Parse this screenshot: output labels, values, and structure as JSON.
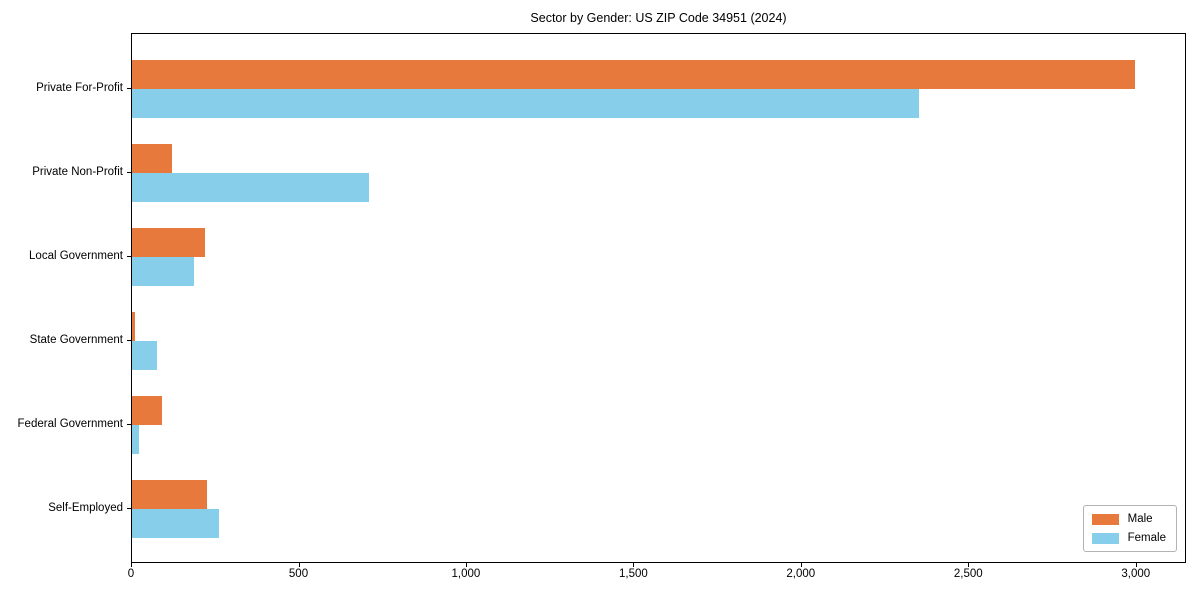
{
  "figure": {
    "background": "#ffffff"
  },
  "chart_data": {
    "type": "bar",
    "orientation": "horizontal",
    "title": "Sector by Gender: US ZIP Code 34951 (2024)",
    "xlabel": "",
    "ylabel": "",
    "grid": false,
    "categories": [
      "Private For-Profit",
      "Private Non-Profit",
      "Local Government",
      "State Government",
      "Federal Government",
      "Self-Employed"
    ],
    "series": [
      {
        "name": "Male",
        "color": "#e8793d",
        "values": [
          2995,
          120,
          218,
          9,
          90,
          224
        ]
      },
      {
        "name": "Female",
        "color": "#87ceeb",
        "values": [
          2350,
          707,
          185,
          74,
          20,
          260
        ]
      }
    ],
    "xlim": [
      0,
      3150
    ],
    "x_ticks": [
      0,
      500,
      1000,
      1500,
      2000,
      2500,
      3000
    ],
    "x_tick_labels": [
      "0",
      "500",
      "1,000",
      "1,500",
      "2,000",
      "2,500",
      "3,000"
    ],
    "legend": {
      "position": "lower right",
      "entries": [
        "Male",
        "Female"
      ]
    }
  }
}
